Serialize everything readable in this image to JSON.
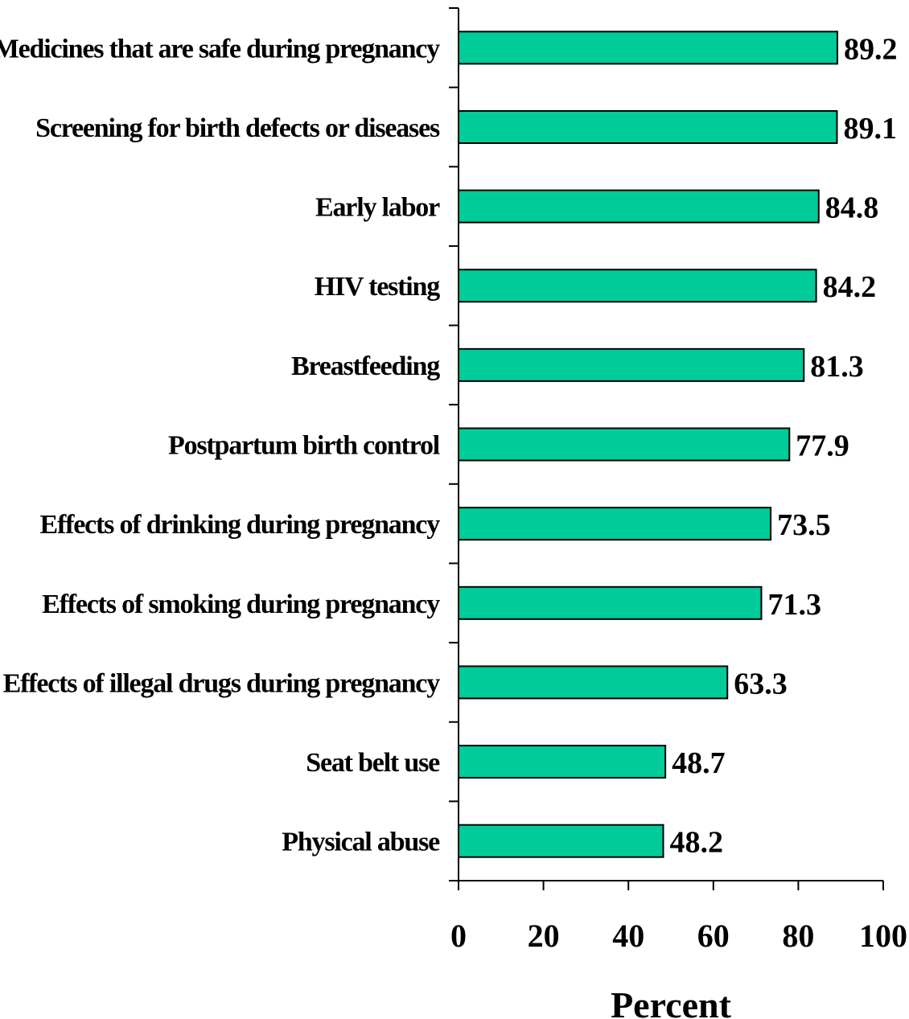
{
  "chart_data": {
    "type": "bar",
    "orientation": "horizontal",
    "title": "",
    "xlabel": "Percent",
    "ylabel": "",
    "xlim": [
      0,
      100
    ],
    "x_ticks": [
      "0",
      "20",
      "40",
      "60",
      "80",
      "100"
    ],
    "grid": false,
    "legend": "none",
    "bar_color": "#00CC99",
    "bar_edge_color": "#000000",
    "categories": [
      "Medicines that are safe during pregnancy",
      "Screening for birth defects or diseases",
      "Early labor",
      "HIV testing",
      "Breastfeeding",
      "Postpartum birth control",
      "Effects of drinking during pregnancy",
      "Effects of smoking during pregnancy",
      "Effects of illegal drugs during pregnancy",
      "Seat belt use",
      "Physical abuse"
    ],
    "values": [
      89.2,
      89.1,
      84.8,
      84.2,
      81.3,
      77.9,
      73.5,
      71.3,
      63.3,
      48.7,
      48.2
    ],
    "value_labels": [
      "89.2",
      "89.1",
      "84.8",
      "84.2",
      "81.3",
      "77.9",
      "73.5",
      "71.3",
      "63.3",
      "48.7",
      "48.2"
    ]
  }
}
